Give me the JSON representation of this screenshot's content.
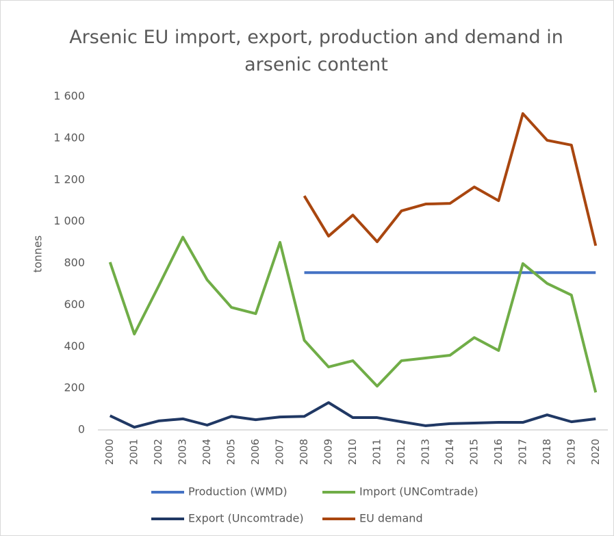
{
  "chart_data": {
    "type": "line",
    "title": "Arsenic EU import, export, production and demand in arsenic content",
    "y_label": "tonnes",
    "categories": [
      "2000",
      "2001",
      "2002",
      "2003",
      "2004",
      "2005",
      "2006",
      "2007",
      "2008",
      "2009",
      "2010",
      "2011",
      "2012",
      "2013",
      "2014",
      "2015",
      "2016",
      "2017",
      "2018",
      "2019",
      "2020"
    ],
    "series": [
      {
        "name": "Production (WMD)",
        "color": "#4472c4",
        "values": [
          null,
          null,
          null,
          null,
          null,
          null,
          null,
          null,
          755,
          755,
          755,
          755,
          755,
          755,
          755,
          755,
          755,
          755,
          755,
          755,
          755
        ]
      },
      {
        "name": "Import (UNComtrade)",
        "color": "#70ad47",
        "values": [
          805,
          460,
          690,
          925,
          720,
          588,
          558,
          900,
          430,
          302,
          332,
          210,
          332,
          345,
          358,
          443,
          381,
          798,
          703,
          647,
          180
        ]
      },
      {
        "name": "Export (Uncomtrade)",
        "color": "#203864",
        "values": [
          68,
          13,
          43,
          53,
          23,
          65,
          49,
          62,
          65,
          131,
          59,
          59,
          39,
          20,
          30,
          33,
          36,
          36,
          72,
          39,
          53
        ]
      },
      {
        "name": "EU demand",
        "color": "#a9460f",
        "values": [
          null,
          null,
          null,
          null,
          null,
          null,
          null,
          null,
          1123,
          930,
          1031,
          903,
          1051,
          1084,
          1087,
          1166,
          1100,
          1518,
          1390,
          1367,
          884
        ]
      }
    ],
    "ylim": [
      0,
      1600
    ],
    "yticks": [
      0,
      200,
      400,
      600,
      800,
      {
        "value": 1000,
        "label": "1 000"
      },
      {
        "value": 1200,
        "label": "1 200"
      },
      {
        "value": 1400,
        "label": "1 400"
      },
      {
        "value": 1600,
        "label": "1 600"
      }
    ],
    "grid": false,
    "legend": "bottom"
  }
}
